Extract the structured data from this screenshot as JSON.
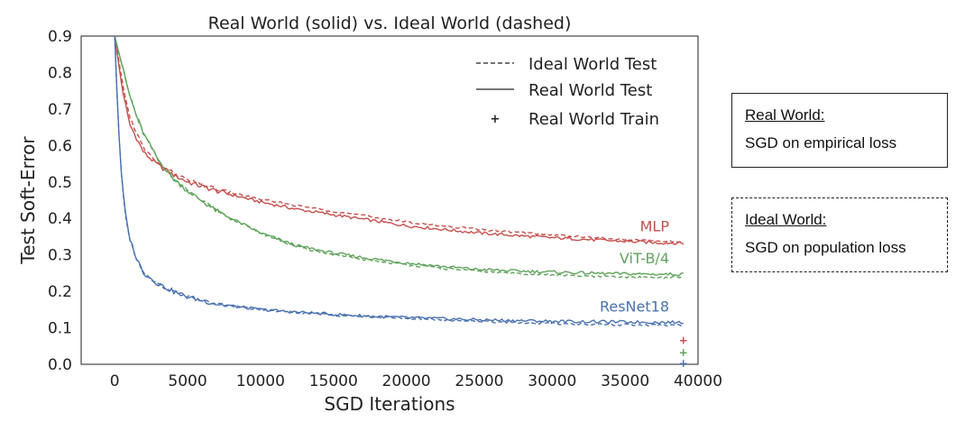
{
  "chart_data": {
    "type": "line",
    "title": "Real World (solid) vs. Ideal World (dashed)",
    "xlabel": "SGD Iterations",
    "ylabel": "Test Soft-Error",
    "xlim": [
      -2300,
      40000
    ],
    "ylim": [
      0.0,
      0.9
    ],
    "xticks": [
      0,
      5000,
      10000,
      15000,
      20000,
      25000,
      30000,
      35000,
      40000
    ],
    "yticks": [
      0.0,
      0.1,
      0.2,
      0.3,
      0.4,
      0.5,
      0.6,
      0.7,
      0.8,
      0.9
    ],
    "grid": false,
    "legend": {
      "placement": "top-right",
      "entries": [
        {
          "label": "Ideal World Test",
          "style": "dashed"
        },
        {
          "label": "Real World Test",
          "style": "solid"
        },
        {
          "label": "Real World Train",
          "style": "marker"
        }
      ]
    },
    "series": [
      {
        "name": "MLP",
        "color": "#c4504d",
        "x": [
          0,
          500,
          1000,
          2000,
          3000,
          4000,
          5000,
          7000,
          10000,
          12500,
          15000,
          17500,
          20000,
          22500,
          25000,
          27500,
          30000,
          32500,
          35000,
          37500,
          39000
        ],
        "real_test": [
          0.9,
          0.76,
          0.66,
          0.58,
          0.545,
          0.52,
          0.5,
          0.475,
          0.445,
          0.425,
          0.41,
          0.395,
          0.38,
          0.37,
          0.36,
          0.353,
          0.347,
          0.342,
          0.337,
          0.333,
          0.332
        ],
        "ideal_test": [
          0.9,
          0.78,
          0.68,
          0.59,
          0.55,
          0.525,
          0.505,
          0.48,
          0.452,
          0.435,
          0.42,
          0.405,
          0.39,
          0.38,
          0.37,
          0.362,
          0.355,
          0.348,
          0.342,
          0.337,
          0.336
        ],
        "real_train": 0.065
      },
      {
        "name": "ViT-B/4",
        "color": "#60a45d",
        "x": [
          0,
          500,
          1000,
          1500,
          2000,
          3000,
          4000,
          5000,
          7000,
          10000,
          12500,
          15000,
          17500,
          20000,
          22500,
          25000,
          27500,
          30000,
          32500,
          35000,
          37500,
          39000
        ],
        "real_test": [
          0.9,
          0.82,
          0.74,
          0.68,
          0.63,
          0.56,
          0.51,
          0.475,
          0.42,
          0.36,
          0.325,
          0.305,
          0.29,
          0.278,
          0.268,
          0.26,
          0.256,
          0.253,
          0.25,
          0.248,
          0.247,
          0.247
        ],
        "ideal_test": [
          0.9,
          0.82,
          0.74,
          0.68,
          0.63,
          0.56,
          0.51,
          0.475,
          0.42,
          0.36,
          0.322,
          0.3,
          0.285,
          0.273,
          0.263,
          0.255,
          0.249,
          0.245,
          0.241,
          0.239,
          0.238,
          0.238
        ],
        "real_train": 0.032
      },
      {
        "name": "ResNet18",
        "color": "#4a72b0",
        "x": [
          0,
          200,
          400,
          700,
          1000,
          1500,
          2000,
          3000,
          4000,
          5000,
          7000,
          10000,
          12500,
          15000,
          17500,
          20000,
          22500,
          25000,
          27500,
          30000,
          32500,
          35000,
          37500,
          39000
        ],
        "real_test": [
          0.9,
          0.7,
          0.55,
          0.42,
          0.35,
          0.29,
          0.25,
          0.22,
          0.2,
          0.185,
          0.165,
          0.15,
          0.143,
          0.137,
          0.132,
          0.128,
          0.125,
          0.122,
          0.12,
          0.118,
          0.117,
          0.116,
          0.115,
          0.115
        ],
        "ideal_test": [
          0.9,
          0.7,
          0.55,
          0.42,
          0.35,
          0.29,
          0.25,
          0.22,
          0.2,
          0.185,
          0.165,
          0.15,
          0.142,
          0.135,
          0.13,
          0.126,
          0.122,
          0.118,
          0.115,
          0.112,
          0.11,
          0.108,
          0.107,
          0.107
        ],
        "real_train": 0.003
      }
    ],
    "annotations": [
      "MLP",
      "ViT-B/4",
      "ResNet18"
    ]
  },
  "callouts": {
    "real": {
      "heading": "Real World:",
      "body": "SGD on empirical loss"
    },
    "ideal": {
      "heading": "Ideal World:",
      "body": "SGD on population loss"
    }
  }
}
